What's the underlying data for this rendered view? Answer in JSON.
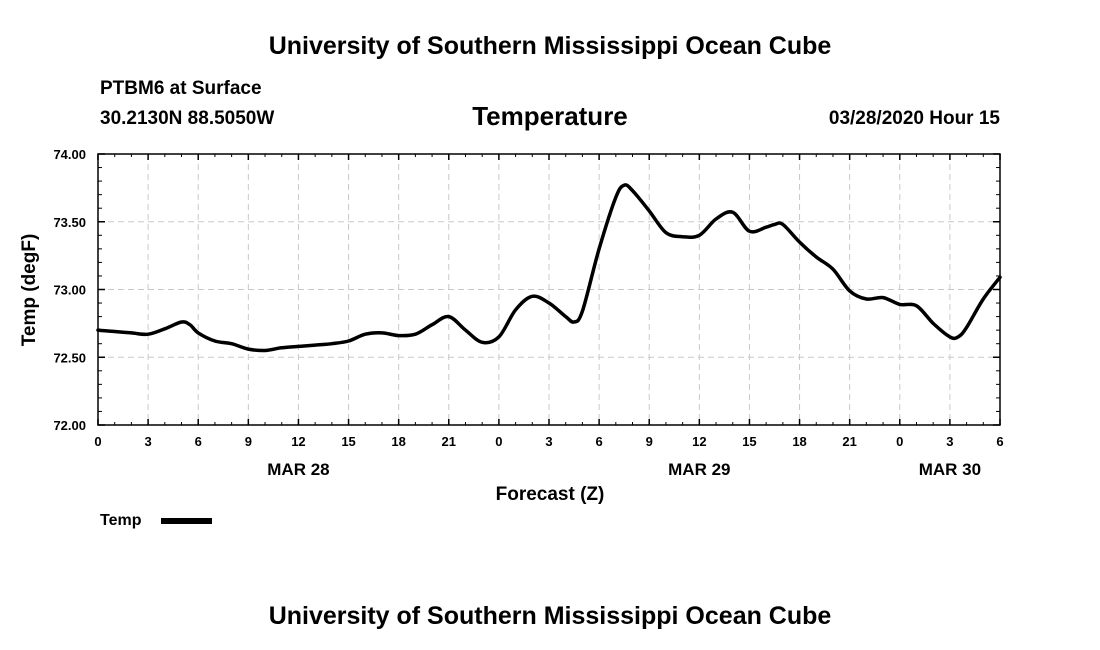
{
  "header": {
    "top_title": "University of Southern Mississippi Ocean Cube",
    "bottom_title": "University of Southern Mississippi Ocean Cube",
    "station": "PTBM6 at Surface",
    "location": "30.2130N 88.5050W",
    "datetime": "03/28/2020 Hour 15"
  },
  "colors": {
    "line": "#000000",
    "grid": "#c8c8c8",
    "frame": "#000000"
  },
  "chart_data": {
    "type": "line",
    "title": "Temperature",
    "xlabel": "Forecast (Z)",
    "ylabel": "Temp (degF)",
    "xlim": [
      0,
      54
    ],
    "ylim": [
      72.0,
      74.0
    ],
    "x_ticks": [
      0,
      3,
      6,
      9,
      12,
      15,
      18,
      21,
      24,
      27,
      30,
      33,
      36,
      39,
      42,
      45,
      48,
      51,
      54
    ],
    "x_tick_labels": [
      "0",
      "3",
      "6",
      "9",
      "12",
      "15",
      "18",
      "21",
      "0",
      "3",
      "6",
      "9",
      "12",
      "15",
      "18",
      "21",
      "0",
      "3",
      "6"
    ],
    "y_ticks": [
      72.0,
      72.5,
      73.0,
      73.5,
      74.0
    ],
    "y_tick_labels": [
      "72.00",
      "72.50",
      "73.00",
      "73.50",
      "74.00"
    ],
    "date_labels": [
      {
        "x": 12,
        "text": "MAR 28"
      },
      {
        "x": 36,
        "text": "MAR 29"
      },
      {
        "x": 51,
        "text": "MAR 30"
      }
    ],
    "grid": true,
    "legend": {
      "position": "bottom-left",
      "entries": [
        "Temp"
      ]
    },
    "series": [
      {
        "name": "Temp",
        "x": [
          0,
          1,
          2,
          3,
          4,
          5,
          5.5,
          6,
          7,
          8,
          9,
          10,
          11,
          12,
          13,
          14,
          15,
          16,
          17,
          18,
          19,
          20,
          21,
          22,
          23,
          24,
          25,
          26,
          27,
          28,
          28.5,
          29,
          30,
          31,
          31.5,
          32,
          33,
          34,
          35,
          36,
          37,
          38,
          39,
          40,
          40.5,
          41,
          42,
          43,
          44,
          45,
          46,
          47,
          48,
          49,
          50,
          51,
          51.5,
          52,
          53,
          54
        ],
        "values": [
          72.7,
          72.69,
          72.68,
          72.67,
          72.71,
          72.76,
          72.74,
          72.68,
          72.62,
          72.6,
          72.56,
          72.55,
          72.57,
          72.58,
          72.59,
          72.6,
          72.62,
          72.67,
          72.68,
          72.66,
          72.67,
          72.74,
          72.8,
          72.7,
          72.61,
          72.65,
          72.85,
          72.95,
          72.9,
          72.8,
          72.76,
          72.84,
          73.3,
          73.68,
          73.77,
          73.73,
          73.58,
          73.42,
          73.39,
          73.4,
          73.52,
          73.57,
          73.43,
          73.46,
          73.48,
          73.48,
          73.35,
          73.24,
          73.15,
          72.99,
          72.93,
          72.94,
          72.89,
          72.88,
          72.75,
          72.65,
          72.65,
          72.72,
          72.93,
          73.09
        ]
      }
    ]
  }
}
